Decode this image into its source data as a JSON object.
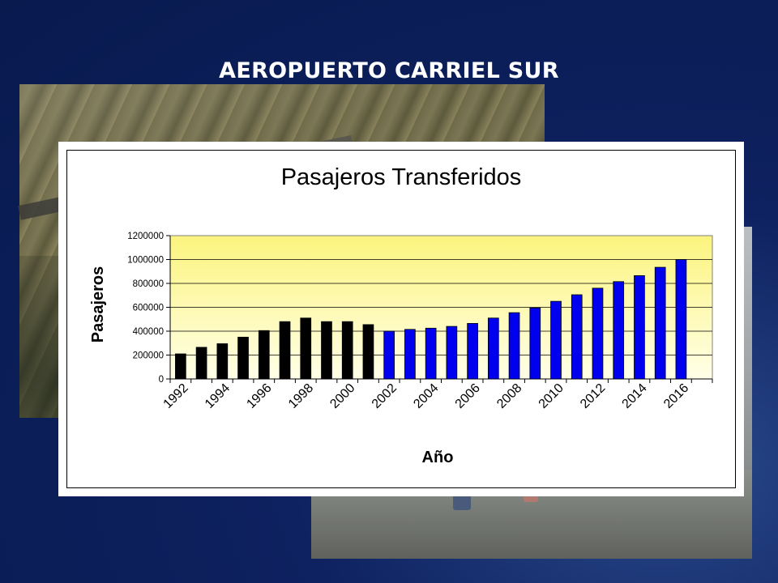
{
  "slide": {
    "title": "AEROPUERTO CARRIEL SUR"
  },
  "colors": {
    "background": "#0e2160",
    "title_text": "#ffffff",
    "plot_bg_top": "#fcf47e",
    "plot_bg_bottom": "#ffffe8",
    "bar_historic": "#000000",
    "bar_projected": "#0000ee"
  },
  "chart_data": {
    "type": "bar",
    "title": "Pasajeros Transferidos",
    "xlabel": "Año",
    "ylabel": "Pasajeros",
    "ylim": [
      0,
      1200000
    ],
    "yticks": [
      "0",
      "200000",
      "400000",
      "600000",
      "800000",
      "1000000",
      "1200000"
    ],
    "grid": true,
    "categories": [
      "1992",
      "1993",
      "1994",
      "1995",
      "1996",
      "1997",
      "1998",
      "1999",
      "2000",
      "2001",
      "2002",
      "2003",
      "2004",
      "2005",
      "2006",
      "2007",
      "2008",
      "2009",
      "2010",
      "2011",
      "2012",
      "2013",
      "2014",
      "2015",
      "2016",
      "2017"
    ],
    "x_tick_labels": [
      "1992",
      "1994",
      "1996",
      "1998",
      "2000",
      "2002",
      "2004",
      "2006",
      "2008",
      "2010",
      "2012",
      "2014",
      "2016"
    ],
    "series": [
      {
        "color": "#000000",
        "values": [
          210000,
          265000,
          295000,
          350000,
          405000,
          480000,
          510000,
          480000,
          480000,
          455000,
          null,
          null,
          null,
          null,
          null,
          null,
          null,
          null,
          null,
          null,
          null,
          null,
          null,
          null,
          null,
          null
        ]
      },
      {
        "color": "#0000ee",
        "values": [
          null,
          null,
          null,
          null,
          null,
          null,
          null,
          null,
          null,
          null,
          400000,
          415000,
          425000,
          440000,
          465000,
          510000,
          555000,
          595000,
          650000,
          705000,
          760000,
          815000,
          865000,
          935000,
          1000000,
          null
        ]
      }
    ]
  }
}
